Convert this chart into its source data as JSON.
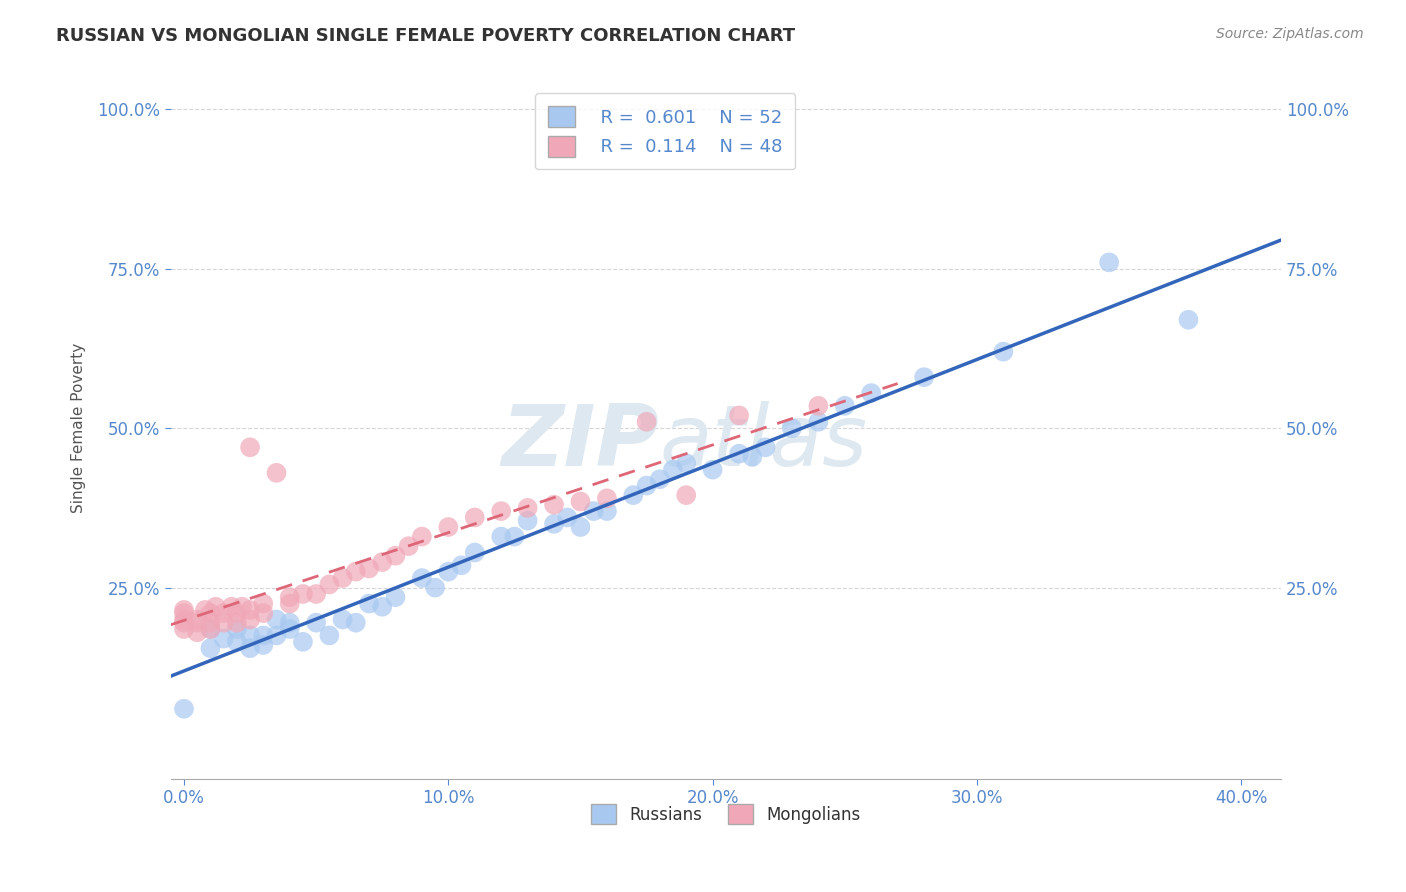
{
  "title": "RUSSIAN VS MONGOLIAN SINGLE FEMALE POVERTY CORRELATION CHART",
  "source": "Source: ZipAtlas.com",
  "xlabel_ticks": [
    "0.0%",
    "10.0%",
    "20.0%",
    "30.0%",
    "40.0%"
  ],
  "xlabel_tick_vals": [
    0.0,
    0.1,
    0.2,
    0.3,
    0.4
  ],
  "ylabel": "Single Female Poverty",
  "ylabel_ticks": [
    "25.0%",
    "50.0%",
    "75.0%",
    "100.0%"
  ],
  "ylabel_tick_vals": [
    0.25,
    0.5,
    0.75,
    1.0
  ],
  "xlim": [
    -0.005,
    0.415
  ],
  "ylim": [
    -0.05,
    1.05
  ],
  "russian_R": 0.601,
  "russian_N": 52,
  "mongolian_R": 0.114,
  "mongolian_N": 48,
  "russian_color": "#a8c8f0",
  "mongolian_color": "#f0a8b8",
  "russian_line_color": "#3366bb",
  "mongolian_line_color": "#dd6677",
  "watermark": "ZIPatlas",
  "watermark_color": "#dde8f0",
  "background_color": "#ffffff",
  "grid_color": "#cccccc",
  "title_color": "#333333",
  "label_color": "#5588cc",
  "russian_x": [
    0.0,
    0.01,
    0.01,
    0.015,
    0.02,
    0.02,
    0.025,
    0.025,
    0.03,
    0.03,
    0.035,
    0.035,
    0.04,
    0.04,
    0.045,
    0.05,
    0.055,
    0.06,
    0.065,
    0.07,
    0.075,
    0.08,
    0.09,
    0.095,
    0.1,
    0.105,
    0.11,
    0.12,
    0.125,
    0.13,
    0.14,
    0.145,
    0.15,
    0.155,
    0.16,
    0.17,
    0.175,
    0.18,
    0.185,
    0.19,
    0.2,
    0.21,
    0.215,
    0.22,
    0.23,
    0.24,
    0.25,
    0.26,
    0.28,
    0.31,
    0.35,
    0.38
  ],
  "russian_y": [
    0.06,
    0.155,
    0.185,
    0.17,
    0.165,
    0.185,
    0.175,
    0.155,
    0.16,
    0.175,
    0.175,
    0.2,
    0.185,
    0.195,
    0.165,
    0.195,
    0.175,
    0.2,
    0.195,
    0.225,
    0.22,
    0.235,
    0.265,
    0.25,
    0.275,
    0.285,
    0.305,
    0.33,
    0.33,
    0.355,
    0.35,
    0.36,
    0.345,
    0.37,
    0.37,
    0.395,
    0.41,
    0.42,
    0.435,
    0.445,
    0.435,
    0.46,
    0.455,
    0.47,
    0.5,
    0.51,
    0.535,
    0.555,
    0.58,
    0.62,
    0.76,
    0.67
  ],
  "mongolian_x": [
    0.0,
    0.0,
    0.0,
    0.0,
    0.0,
    0.005,
    0.005,
    0.005,
    0.008,
    0.01,
    0.01,
    0.01,
    0.012,
    0.015,
    0.015,
    0.018,
    0.02,
    0.02,
    0.022,
    0.025,
    0.025,
    0.025,
    0.03,
    0.03,
    0.035,
    0.04,
    0.04,
    0.045,
    0.05,
    0.055,
    0.06,
    0.065,
    0.07,
    0.075,
    0.08,
    0.085,
    0.09,
    0.1,
    0.11,
    0.12,
    0.13,
    0.14,
    0.15,
    0.16,
    0.175,
    0.19,
    0.21,
    0.24
  ],
  "mongolian_y": [
    0.185,
    0.195,
    0.2,
    0.21,
    0.215,
    0.18,
    0.195,
    0.2,
    0.215,
    0.185,
    0.195,
    0.21,
    0.22,
    0.195,
    0.21,
    0.22,
    0.195,
    0.21,
    0.22,
    0.2,
    0.215,
    0.47,
    0.21,
    0.225,
    0.43,
    0.225,
    0.235,
    0.24,
    0.24,
    0.255,
    0.265,
    0.275,
    0.28,
    0.29,
    0.3,
    0.315,
    0.33,
    0.345,
    0.36,
    0.37,
    0.375,
    0.38,
    0.385,
    0.39,
    0.51,
    0.395,
    0.52,
    0.535
  ]
}
